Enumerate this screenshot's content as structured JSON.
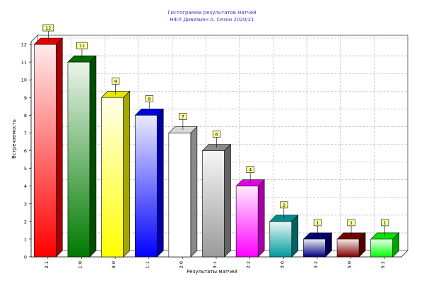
{
  "chart_data": {
    "type": "bar",
    "title": "Гистограмма результатов матчей",
    "subtitle": "НФЛ Дивизион А. Сезон 2020/21",
    "xlabel": "Результаты матчей",
    "ylabel": "Встречаемость",
    "categories": [
      "2:1",
      "1:0",
      "0:0",
      "1:1",
      "2:0",
      "3:1",
      "2:2",
      "3:0",
      "3:2",
      "5:0",
      "5:2"
    ],
    "values": [
      12,
      11,
      9,
      8,
      7,
      6,
      4,
      2,
      1,
      1,
      1
    ],
    "colors": [
      "#ff0000",
      "#007a00",
      "#ffff00",
      "#0000ff",
      "#ffffff",
      "#9a9a9a",
      "#ff00ff",
      "#009a9a",
      "#000080",
      "#800000",
      "#00ff00"
    ],
    "ylim": [
      0,
      12
    ],
    "yticks": [
      0,
      1,
      2,
      3,
      4,
      5,
      6,
      7,
      8,
      9,
      10,
      11,
      12
    ],
    "grid": true,
    "legend": "none",
    "data_labels": true
  }
}
